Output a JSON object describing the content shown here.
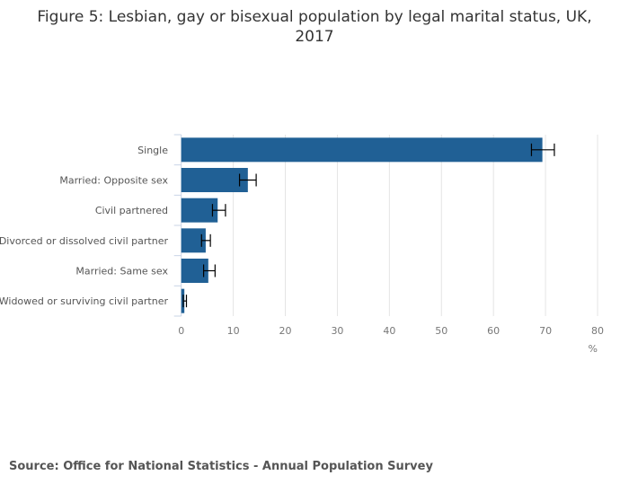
{
  "chart_data": {
    "type": "bar",
    "orientation": "horizontal",
    "title": "Figure 5: Lesbian, gay or bisexual population by legal marital status, UK, 2017",
    "title_lines": [
      "Figure 5: Lesbian, gay or bisexual population by legal marital status, UK,",
      "2017"
    ],
    "categories": [
      "Single",
      "Married: Opposite sex",
      "Civil partnered",
      "Divorced or dissolved civil partner",
      "Married: Same sex",
      "Widowed or surviving civil partner"
    ],
    "values": [
      69.4,
      12.8,
      7.0,
      4.7,
      5.2,
      0.6
    ],
    "error_low": [
      67.3,
      11.2,
      6.0,
      3.9,
      4.3,
      0.4
    ],
    "error_high": [
      71.7,
      14.4,
      8.5,
      5.6,
      6.5,
      1.0
    ],
    "xlabel": "%",
    "ylabel": "",
    "xlim": [
      0,
      80
    ],
    "xticks": [
      0,
      10,
      20,
      30,
      40,
      50,
      60,
      70,
      80
    ],
    "grid": true,
    "bar_color": "#206095"
  },
  "source": "Source: Office for National Statistics - Annual Population Survey"
}
